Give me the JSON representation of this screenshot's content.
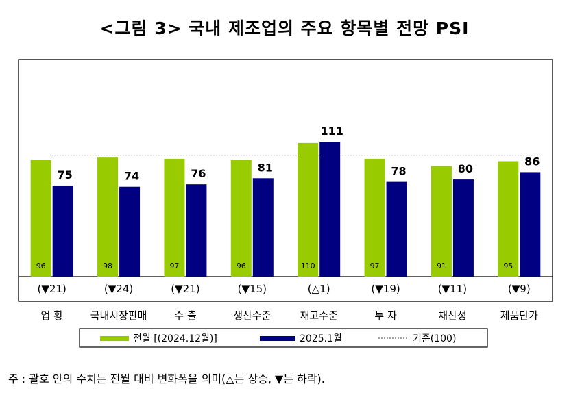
{
  "title": "<그림 3> 국내 제조업의 주요 항목별 전망 PSI",
  "chart_data": {
    "type": "bar",
    "title": "<그림 3> 국내 제조업의 주요 항목별 전망 PSI",
    "categories": [
      "업 황",
      "국내시장판매",
      "수 출",
      "생산수준",
      "재고수준",
      "투 자",
      "채산성",
      "제품단가"
    ],
    "changes": [
      "(▼21)",
      "(▼24)",
      "(▼21)",
      "(▼15)",
      "(△1)",
      "(▼19)",
      "(▼11)",
      "(▼9)"
    ],
    "series": [
      {
        "name": "전월 [(2024.12월)]",
        "values": [
          96,
          98,
          97,
          96,
          110,
          97,
          91,
          95
        ],
        "color": "#99cc00"
      },
      {
        "name": "2025.1월",
        "values": [
          75,
          74,
          76,
          81,
          111,
          78,
          80,
          86
        ],
        "color": "#000080"
      }
    ],
    "reference": {
      "name": "기준(100)",
      "value": 100
    },
    "ylim": [
      0,
      140
    ],
    "grid": false,
    "legend_position": "bottom"
  },
  "note": "주 : 괄호 안의 수치는 전월 대비 변화폭을 의미(△는 상승, ▼는 하락)."
}
